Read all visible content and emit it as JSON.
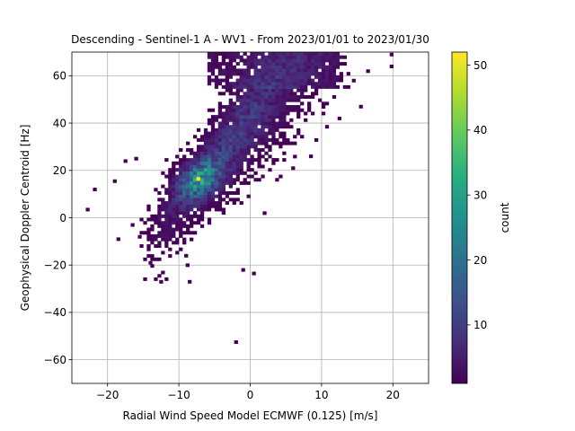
{
  "chart_data": {
    "type": "heatmap",
    "title": "Descending - Sentinel-1 A - WV1 - From 2023/01/01 to 2023/01/30",
    "xlabel": "Radial Wind Speed Model ECMWF (0.125) [m/s]",
    "ylabel": "Geophysical Doppler Centroid [Hz]",
    "xlim": [
      -25,
      25
    ],
    "ylim": [
      -70,
      70
    ],
    "x_ticks": [
      -20,
      -10,
      0,
      10,
      20
    ],
    "y_ticks": [
      -60,
      -40,
      -20,
      0,
      20,
      40,
      60
    ],
    "x_tick_labels": [
      "−20",
      "−10",
      "0",
      "10",
      "20"
    ],
    "y_tick_labels": [
      "−60",
      "−40",
      "−20",
      "0",
      "20",
      "40",
      "60"
    ],
    "grid": true,
    "colormap": "viridis",
    "color_range": [
      1,
      52
    ],
    "colorbar": {
      "label": "count",
      "ticks": [
        10,
        20,
        30,
        40,
        50
      ],
      "tick_labels": [
        "10",
        "20",
        "30",
        "40",
        "50"
      ]
    },
    "bin_width_x": 0.5,
    "bin_width_y": 1.4,
    "density_model": {
      "main_ridge": {
        "x_start": -7.5,
        "y_start": 15,
        "x_end": 5,
        "y_end": 60
      },
      "peak": {
        "x": -7.3,
        "y": 16.5,
        "count": 52
      }
    },
    "outliers": [
      {
        "x": -22.8,
        "y": 3.5
      },
      {
        "x": -21.8,
        "y": 12
      },
      {
        "x": -18.5,
        "y": -9
      },
      {
        "x": -16.5,
        "y": -3
      },
      {
        "x": -15.5,
        "y": -8
      },
      {
        "x": -14,
        "y": -19
      },
      {
        "x": -12.5,
        "y": -27
      },
      {
        "x": -8.5,
        "y": -27
      },
      {
        "x": -9,
        "y": -16
      },
      {
        "x": -8.8,
        "y": -20
      },
      {
        "x": -2,
        "y": -52.5
      },
      {
        "x": -1,
        "y": -22
      },
      {
        "x": 0.5,
        "y": -23.5
      },
      {
        "x": 2,
        "y": 2
      },
      {
        "x": 6,
        "y": 21
      },
      {
        "x": 8.5,
        "y": 26
      },
      {
        "x": 12.5,
        "y": 42
      },
      {
        "x": 15.5,
        "y": 47
      },
      {
        "x": 16.5,
        "y": 62
      },
      {
        "x": 19.8,
        "y": 69
      },
      {
        "x": 19.8,
        "y": 64
      },
      {
        "x": 14.5,
        "y": 58
      },
      {
        "x": -19,
        "y": 15.5
      },
      {
        "x": -17.5,
        "y": 24
      },
      {
        "x": -16,
        "y": 25
      }
    ]
  }
}
